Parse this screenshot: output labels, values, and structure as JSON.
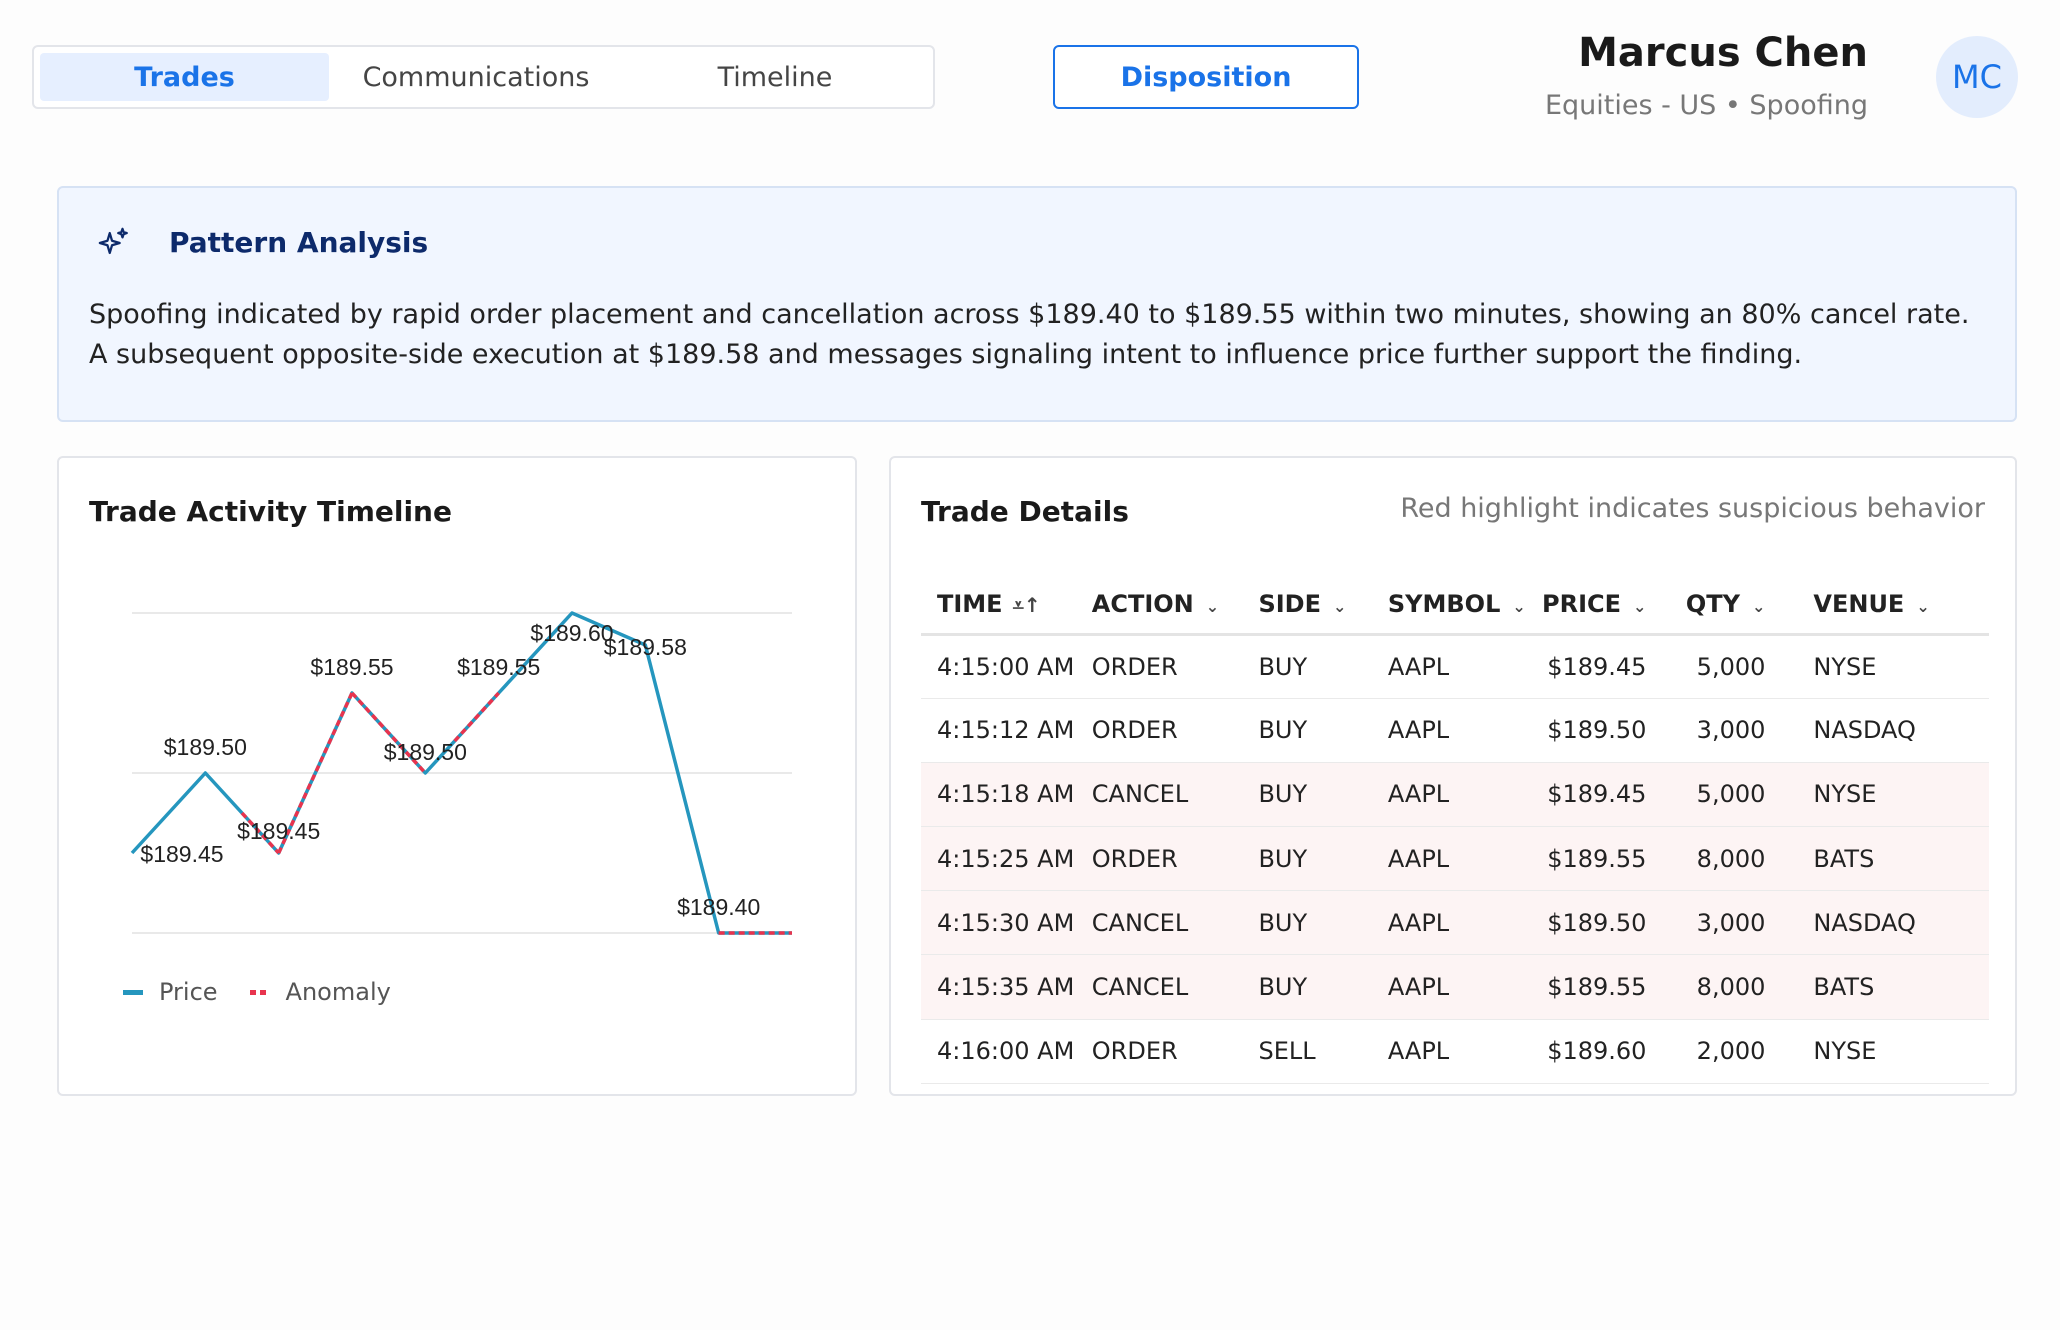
{
  "tabs": [
    {
      "label": "Trades",
      "active": true
    },
    {
      "label": "Communications",
      "active": false
    },
    {
      "label": "Timeline",
      "active": false
    }
  ],
  "disposition_label": "Disposition",
  "user": {
    "name": "Marcus Chen",
    "subtitle": "Equities - US • Spoofing",
    "initials": "MC"
  },
  "pattern": {
    "icon": "sparkle-icon",
    "title": "Pattern Analysis",
    "text": "Spoofing indicated by rapid order placement and cancellation across $189.40 to $189.55 within two minutes, showing an 80% cancel rate. A subsequent opposite-side execution at $189.58 and messages signaling intent to influence price further support the finding."
  },
  "chart_card": {
    "title": "Trade Activity Timeline",
    "legend": {
      "price": "Price",
      "anomaly": "Anomaly"
    }
  },
  "chart_data": {
    "type": "line",
    "title": "Trade Activity Timeline",
    "x": [
      0,
      1,
      2,
      3,
      4,
      5,
      6,
      7,
      8,
      9
    ],
    "series": [
      {
        "name": "Price",
        "values": [
          189.45,
          189.5,
          189.45,
          189.55,
          189.5,
          189.55,
          189.6,
          189.58,
          189.4,
          189.4
        ],
        "color": "#2596be"
      },
      {
        "name": "Anomaly",
        "segments": [
          [
            1.5,
            2
          ],
          [
            2,
            3
          ],
          [
            3,
            4
          ],
          [
            4.4,
            5
          ],
          [
            8,
            9
          ]
        ],
        "color": "#e8344e"
      }
    ],
    "data_labels": [
      {
        "i": 0,
        "text": "$189.45"
      },
      {
        "i": 1,
        "text": "$189.50"
      },
      {
        "i": 2,
        "text": "$189.45"
      },
      {
        "i": 3,
        "text": "$189.55"
      },
      {
        "i": 4,
        "text": "$189.50"
      },
      {
        "i": 5,
        "text": "$189.55"
      },
      {
        "i": 6,
        "text": "$189.60"
      },
      {
        "i": 7,
        "text": "$189.58"
      },
      {
        "i": 8,
        "text": "$189.40"
      }
    ],
    "ylim": [
      189.4,
      189.6
    ],
    "grid": true,
    "legend": "bottom-left"
  },
  "table_card": {
    "title": "Trade Details",
    "note": "Red highlight indicates suspicious behavior",
    "columns": [
      "TIME",
      "ACTION",
      "SIDE",
      "SYMBOL",
      "PRICE",
      "QTY",
      "VENUE"
    ],
    "rows": [
      {
        "time": "4:15:00 AM",
        "action": "ORDER",
        "side": "BUY",
        "symbol": "AAPL",
        "price": "$189.45",
        "qty": "5,000",
        "venue": "NYSE",
        "suspicious": false
      },
      {
        "time": "4:15:12 AM",
        "action": "ORDER",
        "side": "BUY",
        "symbol": "AAPL",
        "price": "$189.50",
        "qty": "3,000",
        "venue": "NASDAQ",
        "suspicious": false
      },
      {
        "time": "4:15:18 AM",
        "action": "CANCEL",
        "side": "BUY",
        "symbol": "AAPL",
        "price": "$189.45",
        "qty": "5,000",
        "venue": "NYSE",
        "suspicious": true
      },
      {
        "time": "4:15:25 AM",
        "action": "ORDER",
        "side": "BUY",
        "symbol": "AAPL",
        "price": "$189.55",
        "qty": "8,000",
        "venue": "BATS",
        "suspicious": true
      },
      {
        "time": "4:15:30 AM",
        "action": "CANCEL",
        "side": "BUY",
        "symbol": "AAPL",
        "price": "$189.50",
        "qty": "3,000",
        "venue": "NASDAQ",
        "suspicious": true
      },
      {
        "time": "4:15:35 AM",
        "action": "CANCEL",
        "side": "BUY",
        "symbol": "AAPL",
        "price": "$189.55",
        "qty": "8,000",
        "venue": "BATS",
        "suspicious": true
      },
      {
        "time": "4:16:00 AM",
        "action": "ORDER",
        "side": "SELL",
        "symbol": "AAPL",
        "price": "$189.60",
        "qty": "2,000",
        "venue": "NYSE",
        "suspicious": false
      }
    ]
  },
  "colors": {
    "accent": "#1a73e8",
    "buy": "#1e8e3e",
    "sell": "#e53935",
    "suspicious_row": "#fdf4f4"
  }
}
